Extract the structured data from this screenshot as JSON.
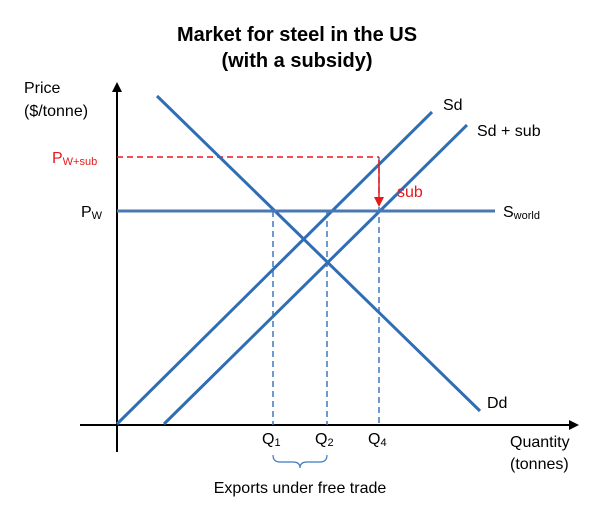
{
  "title_line1": "Market for steel in the US",
  "title_line2": "(with a subsidy)",
  "axes": {
    "y_label_line1": "Price",
    "y_label_line2": "($/tonne)",
    "x_label_line1": "Quantity",
    "x_label_line2": "(tonnes)"
  },
  "price_labels": {
    "pw_main": "P",
    "pw_sub": "W",
    "pwsub_main": "P",
    "pwsub_sub": "W+sub"
  },
  "curves": {
    "sd": "Sd",
    "sd_plus_sub": "Sd + sub",
    "dd": "Dd",
    "sworld_main": "S",
    "sworld_sub": "world"
  },
  "quantities": {
    "q1_main": "Q",
    "q1_sub": "1",
    "q2_main": "Q",
    "q2_sub": "2",
    "q4_main": "Q",
    "q4_sub": "4"
  },
  "subsidy_label": "sub",
  "bracket_label": "Exports under free trade",
  "colors": {
    "curve": "#2f6db5",
    "world_supply": "#4a78b3",
    "guide": "#3f79c0",
    "subsidy": "#e8191b",
    "axis": "#000000"
  }
}
